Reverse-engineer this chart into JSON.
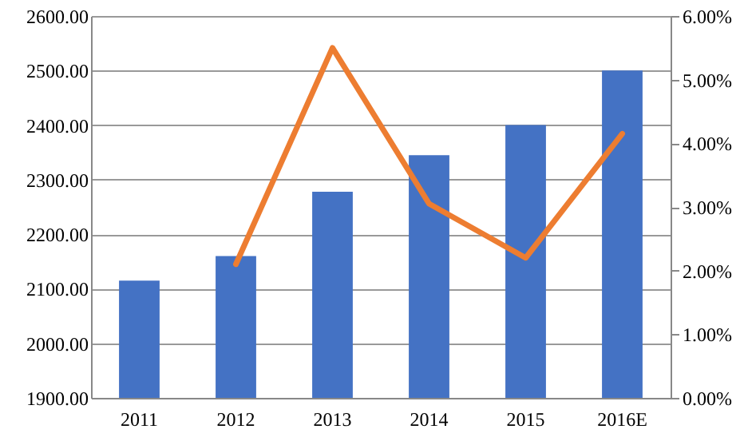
{
  "chart_data": {
    "type": "bar",
    "categories": [
      "2011",
      "2012",
      "2013",
      "2014",
      "2015",
      "2016E"
    ],
    "series": [
      {
        "color": "#4472c4",
        "values": [
          2115,
          2160,
          2278,
          2345,
          2400,
          2500
        ]
      },
      {
        "type": "line",
        "axis": "y2",
        "color": "#ed7d31",
        "values": [
          null,
          2.1,
          5.5,
          3.05,
          2.2,
          4.15
        ]
      }
    ],
    "ylim": [
      1900,
      2600
    ],
    "yticks": [
      {
        "value": 1900,
        "label": "1900.00"
      },
      {
        "value": 2000,
        "label": "2000.00"
      },
      {
        "value": 2100,
        "label": "2100.00"
      },
      {
        "value": 2200,
        "label": "2200.00"
      },
      {
        "value": 2300,
        "label": "2300.00"
      },
      {
        "value": 2400,
        "label": "2400.00"
      },
      {
        "value": 2500,
        "label": "2500.00"
      },
      {
        "value": 2600,
        "label": "2600.00"
      }
    ],
    "y2lim": [
      0,
      6
    ],
    "y2ticks": [
      {
        "value": 0,
        "label": "0.00%"
      },
      {
        "value": 1,
        "label": "1.00%"
      },
      {
        "value": 2,
        "label": "2.00%"
      },
      {
        "value": 3,
        "label": "3.00%"
      },
      {
        "value": 4,
        "label": "4.00%"
      },
      {
        "value": 5,
        "label": "5.00%"
      },
      {
        "value": 6,
        "label": "6.00%"
      }
    ],
    "grid": "y",
    "marker": "none",
    "line_style": "solid"
  }
}
